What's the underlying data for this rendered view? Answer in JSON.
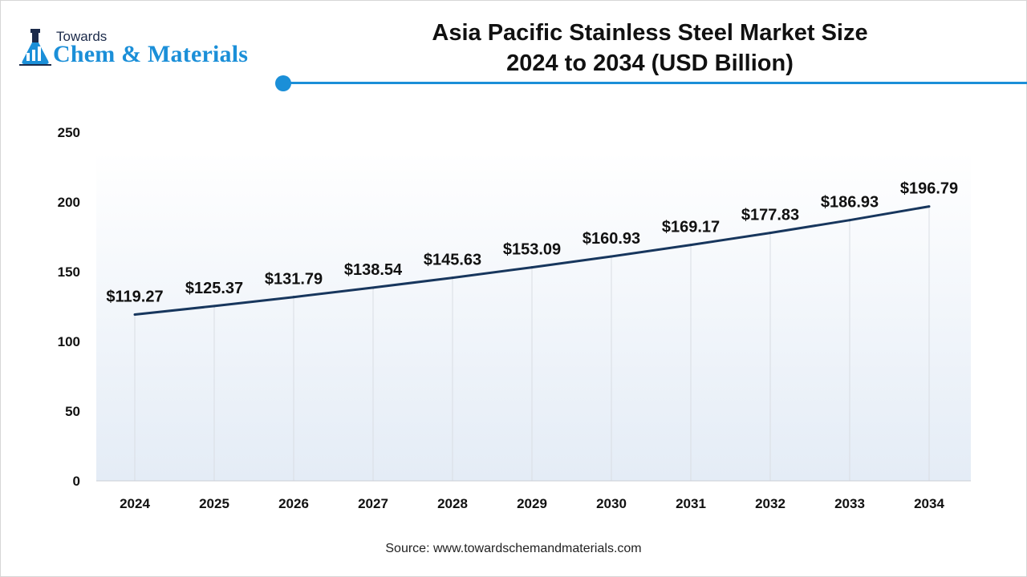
{
  "brand": {
    "line1": "Towards",
    "line2": "Chem & Materials",
    "icon": "flask-icon"
  },
  "colors": {
    "accent": "#1b8fd8",
    "line": "#17365d",
    "grid": "#d9dde3"
  },
  "source": "Source: www.towardschemandmaterials.com",
  "chart_data": {
    "type": "line",
    "title_line1": "Asia Pacific Stainless Steel Market Size",
    "title_line2": "2024 to 2034 (USD Billion)",
    "categories": [
      "2024",
      "2025",
      "2026",
      "2027",
      "2028",
      "2029",
      "2030",
      "2031",
      "2032",
      "2033",
      "2034"
    ],
    "series": [
      {
        "name": "Market Size (USD Billion)",
        "values": [
          119.27,
          125.37,
          131.79,
          138.54,
          145.63,
          153.09,
          160.93,
          169.17,
          177.83,
          186.93,
          196.79
        ]
      }
    ],
    "data_labels": [
      "$119.27",
      "$125.37",
      "$131.79",
      "$138.54",
      "$145.63",
      "$153.09",
      "$160.93",
      "$169.17",
      "$177.83",
      "$186.93",
      "$196.79"
    ],
    "ylim": [
      0,
      250
    ],
    "yticks": [
      "0",
      "50",
      "100",
      "150",
      "200",
      "250"
    ],
    "xlabel": "",
    "ylabel": "",
    "grid": "vertical"
  }
}
